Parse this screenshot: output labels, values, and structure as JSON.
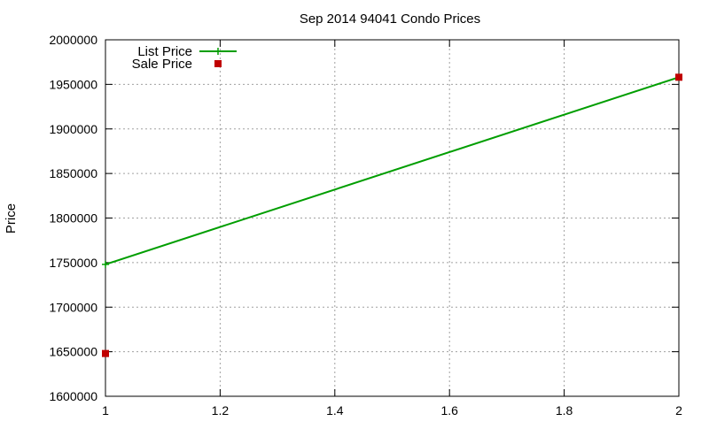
{
  "chart_data": {
    "type": "line",
    "title": "Sep 2014 94041 Condo Prices",
    "xlabel": "",
    "ylabel": "Price",
    "xlim": [
      1,
      2
    ],
    "ylim": [
      1600000,
      2000000
    ],
    "x_ticks": [
      1,
      1.2,
      1.4,
      1.6,
      1.8,
      2
    ],
    "x_tick_labels": [
      "1",
      "1.2",
      "1.4",
      "1.6",
      "1.8",
      "2"
    ],
    "y_ticks": [
      1600000,
      1650000,
      1700000,
      1750000,
      1800000,
      1850000,
      1900000,
      1950000,
      2000000
    ],
    "y_tick_labels": [
      "1600000",
      "1650000",
      "1700000",
      "1750000",
      "1800000",
      "1850000",
      "1900000",
      "1950000",
      "2000000"
    ],
    "grid": true,
    "legend_position": "top-left",
    "series": [
      {
        "name": "List Price",
        "style": "linespoints",
        "marker": "plus",
        "color": "#009e00",
        "x": [
          1,
          2
        ],
        "y": [
          1748000,
          1958000
        ]
      },
      {
        "name": "Sale Price",
        "style": "points",
        "marker": "square",
        "color": "#c00000",
        "x": [
          1,
          2
        ],
        "y": [
          1648000,
          1958000
        ]
      }
    ]
  }
}
